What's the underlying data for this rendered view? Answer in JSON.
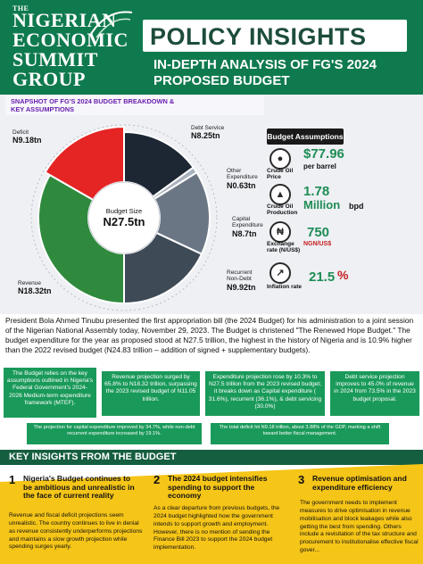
{
  "header": {
    "logo": {
      "the": "THE",
      "line1": "NIGERIAN",
      "line2": "ECONOMIC",
      "line3": "SUMMIT",
      "line4": "GROUP"
    },
    "title": "POLICY INSIGHTS",
    "subtitle_line1": "IN-DEPTH ANALYSIS OF FG'S 2024",
    "subtitle_line2": "PROPOSED BUDGET"
  },
  "snapshot": {
    "title": "SNAPSHOT OF FG'S 2024 BUDGET BREAKDOWN & KEY ASSUMPTIONS",
    "center_label": "Budget Size",
    "center_value": "N27.5tn",
    "segments": [
      {
        "label": "Deficit",
        "value": "N9.18tn",
        "color": "#e52424"
      },
      {
        "label": "Debt Service",
        "value": "N8.25tn",
        "color": "#1c2733"
      },
      {
        "label": "Other Expenditure",
        "value": "N0.63tn",
        "color": "#a9b2bd"
      },
      {
        "label": "Capital Expenditure",
        "value": "N8.7tn",
        "color": "#6b7685"
      },
      {
        "label": "Recurrent Non-Debt",
        "value": "N9.92tn",
        "color": "#3f4a57"
      },
      {
        "label": "Revenue",
        "value": "N18.32tn",
        "color": "#2f8a3e"
      }
    ]
  },
  "assumptions": {
    "title": "Budget Assumptions",
    "items": [
      {
        "label": "Crude Oil Price",
        "value": "$77.96",
        "unit": "per barrel",
        "icon": "oil-barrel-icon"
      },
      {
        "label": "Crude Oil Production",
        "value": "1.78",
        "value2": "Million",
        "unit": "bpd",
        "icon": "oil-rig-icon"
      },
      {
        "label": "Exchange rate (N/US$)",
        "value": "750",
        "unit": "NGN/US$",
        "icon": "currency-exchange-icon"
      },
      {
        "label": "Inflation rate",
        "value": "21.5",
        "unit": "%",
        "icon": "inflation-chart-icon"
      }
    ]
  },
  "intro": "President Bola Ahmed Tinubu presented the first appropriation bill (the 2024 Budget) for his administration to a joint session of the Nigerian National Assembly today, November 29, 2023. The Budget is christened \"The Renewed Hope Budget.\" The budget expenditure for the year as proposed stood at N27.5 trillion, the highest in the history of Nigeria and is 10.9% higher than the 2022 revised budget (N24.83 trillion – addition of signed + supplementary budgets).",
  "highlights": [
    "The Budget relies on the key assumptions outlined in Nigeria's Federal Government's 2024-2026 Medium-term expenditure framework (MTEF).",
    "Revenue projection surged by 65.8% to N18.32 trillion, surpassing the 2023 revised budget of N11.05 trillion.",
    "Expenditure projection rose by 10.3% to N27.5 trillion from the 2023 revised budget; it breaks down as Capital expenditure ( 31.6%), recurrent (36.1%), & debt servicing (30.0%)",
    "Debt service projection improves to 45.0% of revenue in 2024 from 73.5% in the 2023 budget proposal."
  ],
  "strips": [
    "The projection for capital expenditure improved by 34.7%, while non-debt recurrent expenditure increased by 19.1%.",
    "The total deficit hit N9.18 trillion, about 3.88% of the GDP, marking a shift toward better fiscal management."
  ],
  "insights": {
    "title": "KEY INSIGHTS FROM THE BUDGET",
    "items": [
      {
        "num": "1",
        "heading": "Nigeria's Budget continues to be ambitious and unrealistic in the face of current reality",
        "body": "Revenue and fiscal deficit projections seem unrealistic. The country continues to live in denial as revenue consistently underperforms projections and maintains a slow growth projection while spending surges yearly."
      },
      {
        "num": "2",
        "heading": "The 2024 budget intensifies spending to support the economy",
        "body": "As a clear departure from previous budgets, the 2024 budget highlighted how the government intends to support growth and employment. However, there is no mention of sending the Finance Bill 2023 to support the 2024 budget implementation."
      },
      {
        "num": "3",
        "heading": "Revenue optimisation and expenditure efficiency",
        "body": "The government needs to implement measures to drive optimisation in revenue mobilisation and block leakages while also getting the best from spending. Others include a revisitation of the tax structure and procurement to institutionalise effective fiscal gover..."
      }
    ]
  }
}
